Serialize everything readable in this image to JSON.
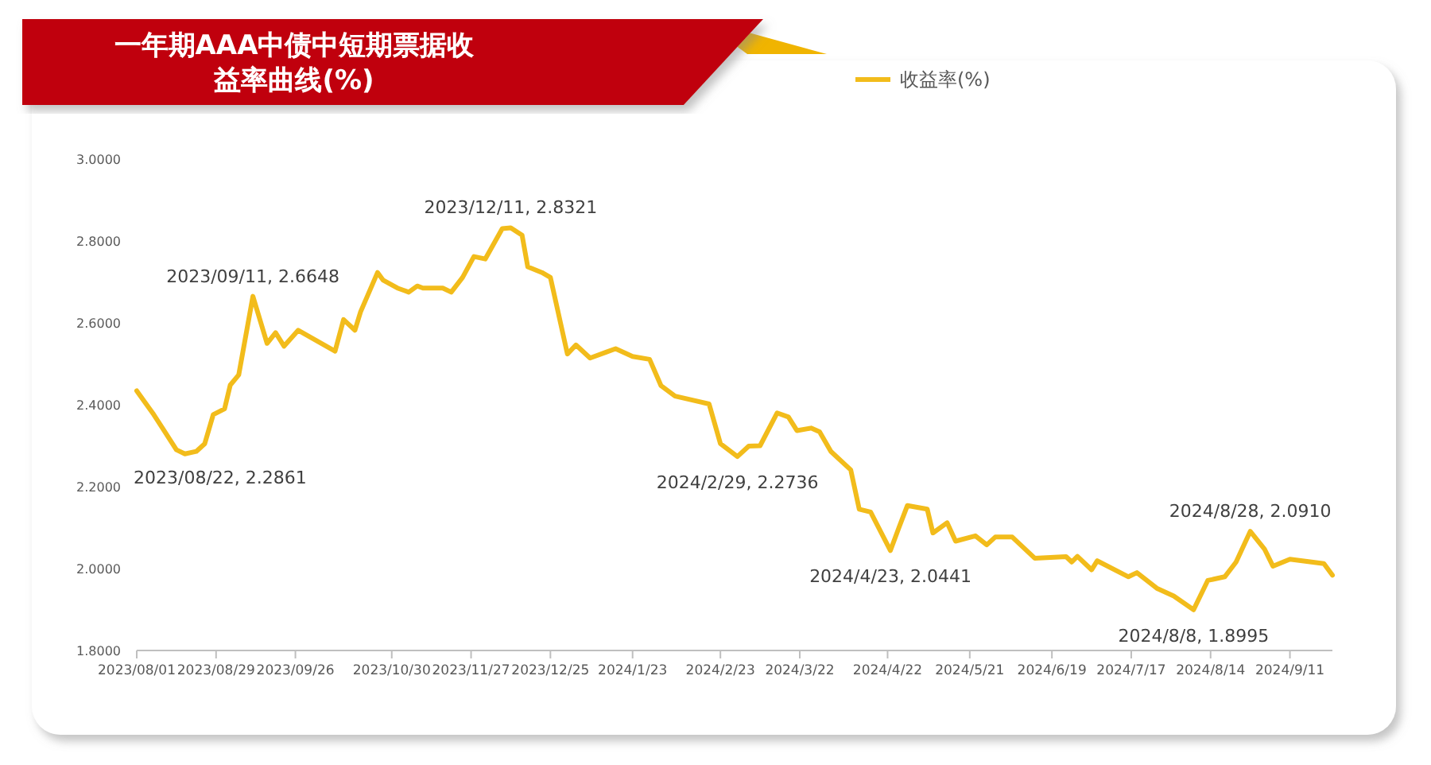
{
  "chart_data": {
    "type": "line",
    "title": "一年期AAA中债中短期票据收益率曲线(%)",
    "xlim": [
      "2023-08-01",
      "2024-09-26"
    ],
    "xticks": [
      {
        "value": "2023-08-01",
        "label": "2023/08/01"
      },
      {
        "value": "2023-08-29",
        "label": "2023/08/29"
      },
      {
        "value": "2023-09-26",
        "label": "2023/09/26"
      },
      {
        "value": "2023-10-30",
        "label": "2023/10/30"
      },
      {
        "value": "2023-11-27",
        "label": "2023/11/27"
      },
      {
        "value": "2023-12-25",
        "label": "2023/12/25"
      },
      {
        "value": "2024-01-23",
        "label": "2024/1/23"
      },
      {
        "value": "2024-02-23",
        "label": "2024/2/23"
      },
      {
        "value": "2024-03-22",
        "label": "2024/3/22"
      },
      {
        "value": "2024-04-22",
        "label": "2024/4/22"
      },
      {
        "value": "2024-05-21",
        "label": "2024/5/21"
      },
      {
        "value": "2024-06-19",
        "label": "2024/6/19"
      },
      {
        "value": "2024-07-17",
        "label": "2024/7/17"
      },
      {
        "value": "2024-08-14",
        "label": "2024/8/14"
      },
      {
        "value": "2024-09-11",
        "label": "2024/9/11"
      }
    ],
    "ylim": [
      1.8,
      3.0
    ],
    "yticks": [
      {
        "value": 1.8,
        "label": "1.8000"
      },
      {
        "value": 2.0,
        "label": "2.0000"
      },
      {
        "value": 2.2,
        "label": "2.2000"
      },
      {
        "value": 2.4,
        "label": "2.4000"
      },
      {
        "value": 2.6,
        "label": "2.6000"
      },
      {
        "value": 2.8,
        "label": "2.8000"
      },
      {
        "value": 3.0,
        "label": "3.0000"
      }
    ],
    "legend": "top right",
    "series": [
      {
        "name": "收益率(%)",
        "color": "#f2bc1b",
        "x": [
          "2023-08-01",
          "2023-08-07",
          "2023-08-10",
          "2023-08-15",
          "2023-08-18",
          "2023-08-22",
          "2023-08-25",
          "2023-08-28",
          "2023-09-01",
          "2023-09-03",
          "2023-09-06",
          "2023-09-11",
          "2023-09-16",
          "2023-09-19",
          "2023-09-22",
          "2023-09-27",
          "2023-10-10",
          "2023-10-13",
          "2023-10-17",
          "2023-10-19",
          "2023-10-23",
          "2023-10-25",
          "2023-10-27",
          "2023-11-01",
          "2023-11-05",
          "2023-11-08",
          "2023-11-10",
          "2023-11-17",
          "2023-11-20",
          "2023-11-24",
          "2023-11-28",
          "2023-12-02",
          "2023-12-08",
          "2023-12-11",
          "2023-12-15",
          "2023-12-17",
          "2023-12-22",
          "2023-12-25",
          "2023-12-31",
          "2024-01-03",
          "2024-01-08",
          "2024-01-17",
          "2024-01-23",
          "2024-01-29",
          "2024-02-02",
          "2024-02-07",
          "2024-02-19",
          "2024-02-23",
          "2024-02-29",
          "2024-03-04",
          "2024-03-08",
          "2024-03-14",
          "2024-03-18",
          "2024-03-21",
          "2024-03-26",
          "2024-03-29",
          "2024-04-02",
          "2024-04-09",
          "2024-04-12",
          "2024-04-16",
          "2024-04-23",
          "2024-04-26",
          "2024-04-29",
          "2024-05-06",
          "2024-05-08",
          "2024-05-13",
          "2024-05-16",
          "2024-05-23",
          "2024-05-27",
          "2024-05-30",
          "2024-06-05",
          "2024-06-13",
          "2024-06-24",
          "2024-06-26",
          "2024-06-28",
          "2024-07-03",
          "2024-07-05",
          "2024-07-16",
          "2024-07-19",
          "2024-07-26",
          "2024-08-01",
          "2024-08-08",
          "2024-08-13",
          "2024-08-19",
          "2024-08-23",
          "2024-08-28",
          "2024-09-02",
          "2024-09-05",
          "2024-09-11",
          "2024-09-23",
          "2024-09-26"
        ],
        "values": [
          2.434,
          2.376,
          2.344,
          2.29,
          2.28,
          2.2861,
          2.305,
          2.376,
          2.39,
          2.448,
          2.473,
          2.6648,
          2.55,
          2.576,
          2.543,
          2.582,
          2.531,
          2.608,
          2.582,
          2.627,
          2.691,
          2.723,
          2.704,
          2.685,
          2.675,
          2.69,
          2.685,
          2.685,
          2.675,
          2.711,
          2.762,
          2.756,
          2.83,
          2.8321,
          2.814,
          2.737,
          2.723,
          2.711,
          2.524,
          2.546,
          2.514,
          2.537,
          2.518,
          2.511,
          2.447,
          2.421,
          2.402,
          2.305,
          2.2736,
          2.299,
          2.3,
          2.38,
          2.37,
          2.337,
          2.343,
          2.334,
          2.286,
          2.241,
          2.145,
          2.138,
          2.0441,
          2.1,
          2.154,
          2.145,
          2.087,
          2.112,
          2.067,
          2.08,
          2.058,
          2.077,
          2.077,
          2.025,
          2.029,
          2.016,
          2.03,
          1.997,
          2.019,
          1.98,
          1.99,
          1.952,
          1.933,
          1.8995,
          1.971,
          1.98,
          2.016,
          2.091,
          2.048,
          2.006,
          2.023,
          2.012,
          1.984
        ]
      }
    ],
    "annotations": [
      {
        "text": "2023/08/22, 2.2861",
        "x": "2023-08-22",
        "y": 2.2861
      },
      {
        "text": "2023/09/11, 2.6648",
        "x": "2023-09-11",
        "y": 2.6648
      },
      {
        "text": "2023/12/11, 2.8321",
        "x": "2023-12-11",
        "y": 2.8321
      },
      {
        "text": "2024/2/29, 2.2736",
        "x": "2024-02-29",
        "y": 2.2736
      },
      {
        "text": "2024/4/23, 2.0441",
        "x": "2024-04-23",
        "y": 2.0441
      },
      {
        "text": "2024/8/8, 1.8995",
        "x": "2024-08-08",
        "y": 1.8995
      },
      {
        "text": "2024/8/28, 2.0910",
        "x": "2024-08-28",
        "y": 2.091
      }
    ]
  }
}
